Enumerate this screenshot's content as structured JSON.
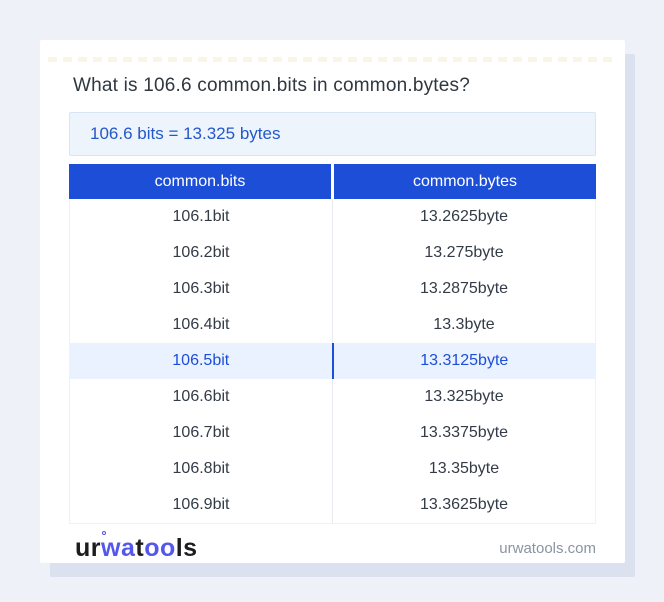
{
  "title": "What is 106.6 common.bits in common.bytes?",
  "result": "106.6 bits = 13.325 bytes",
  "table": {
    "headers": [
      "common.bits",
      "common.bytes"
    ],
    "rows": [
      {
        "bits": "106.1bit",
        "bytes": "13.2625byte",
        "highlighted": false
      },
      {
        "bits": "106.2bit",
        "bytes": "13.275byte",
        "highlighted": false
      },
      {
        "bits": "106.3bit",
        "bytes": "13.2875byte",
        "highlighted": false
      },
      {
        "bits": "106.4bit",
        "bytes": "13.3byte",
        "highlighted": false
      },
      {
        "bits": "106.5bit",
        "bytes": "13.3125byte",
        "highlighted": true
      },
      {
        "bits": "106.6bit",
        "bytes": "13.325byte",
        "highlighted": false
      },
      {
        "bits": "106.7bit",
        "bytes": "13.3375byte",
        "highlighted": false
      },
      {
        "bits": "106.8bit",
        "bytes": "13.35byte",
        "highlighted": false
      },
      {
        "bits": "106.9bit",
        "bytes": "13.3625byte",
        "highlighted": false
      }
    ]
  },
  "footer": {
    "logo": {
      "part1": "ur",
      "part2": "wa",
      "part3": "t",
      "part4": "oo",
      "part5": "ls"
    },
    "site": "urwatools.com"
  },
  "colors": {
    "accent_blue": "#1d4ed8",
    "result_blue": "#2457c8",
    "logo_blue": "#5457ee",
    "highlight_bg": "#e9f2fe",
    "result_bg": "#edf4fc",
    "page_bg": "#eef1f8"
  }
}
